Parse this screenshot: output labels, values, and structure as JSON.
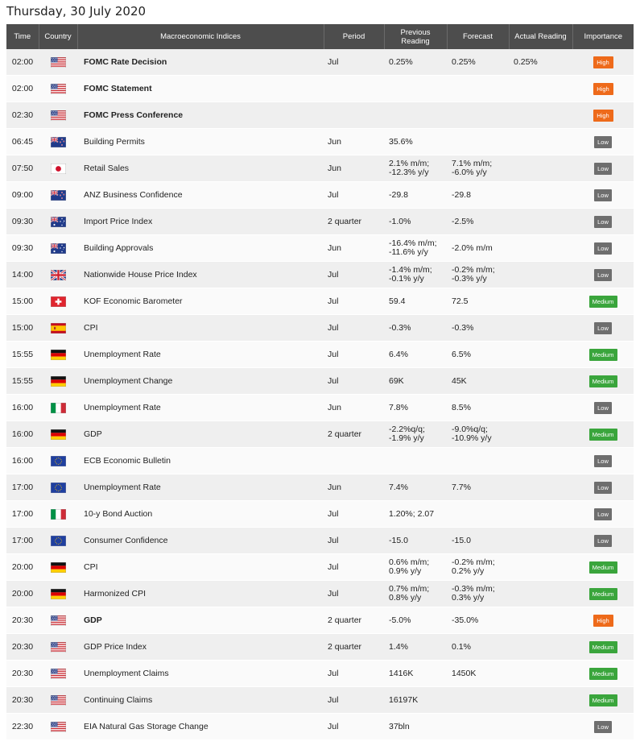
{
  "page": {
    "title": "Thursday, 30 July 2020"
  },
  "columns": [
    "Time",
    "Country",
    "Macroeconomic Indices",
    "Period",
    "Previous Reading",
    "Forecast",
    "Actual Reading",
    "Importance"
  ],
  "colors": {
    "header_bg": "#4d4d4d",
    "high": "#ee6a1a",
    "medium": "#3aa53c",
    "low": "#6e6e6e"
  },
  "rows": [
    {
      "time": "02:00",
      "country": "us-flag-icon",
      "event": "FOMC Rate Decision",
      "bold": true,
      "period": "Jul",
      "prev": "0.25%",
      "fcst": "0.25%",
      "actual": "0.25%",
      "importance": "High"
    },
    {
      "time": "02:00",
      "country": "us-flag-icon",
      "event": "FOMC Statement",
      "bold": true,
      "period": "",
      "prev": "",
      "fcst": "",
      "actual": "",
      "importance": "High"
    },
    {
      "time": "02:30",
      "country": "us-flag-icon",
      "event": "FOMC Press Conference",
      "bold": true,
      "period": "",
      "prev": "",
      "fcst": "",
      "actual": "",
      "importance": "High"
    },
    {
      "time": "06:45",
      "country": "nz-flag-icon",
      "event": "Building Permits",
      "bold": false,
      "period": "Jun",
      "prev": "35.6%",
      "fcst": "",
      "actual": "",
      "importance": "Low"
    },
    {
      "time": "07:50",
      "country": "jp-flag-icon",
      "event": "Retail Sales",
      "bold": false,
      "period": "Jun",
      "prev": "2.1% m/m;\n-12.3% y/y",
      "fcst": "7.1% m/m;\n-6.0% y/y",
      "actual": "",
      "importance": "Low"
    },
    {
      "time": "09:00",
      "country": "nz-flag-icon",
      "event": "ANZ Business Confidence",
      "bold": false,
      "period": "Jul",
      "prev": "-29.8",
      "fcst": "-29.8",
      "actual": "",
      "importance": "Low"
    },
    {
      "time": "09:30",
      "country": "au-flag-icon",
      "event": "Import Price Index",
      "bold": false,
      "period": "2 quarter",
      "prev": "-1.0%",
      "fcst": "-2.5%",
      "actual": "",
      "importance": "Low"
    },
    {
      "time": "09:30",
      "country": "au-flag-icon",
      "event": "Building Approvals",
      "bold": false,
      "period": "Jun",
      "prev": "-16.4% m/m;\n-11.6% y/y",
      "fcst": "-2.0% m/m",
      "actual": "",
      "importance": "Low"
    },
    {
      "time": "14:00",
      "country": "uk-flag-icon",
      "event": "Nationwide House Price Index",
      "bold": false,
      "period": "Jul",
      "prev": "-1.4% m/m;\n-0.1% y/y",
      "fcst": "-0.2% m/m;\n-0.3% y/y",
      "actual": "",
      "importance": "Low"
    },
    {
      "time": "15:00",
      "country": "ch-flag-icon",
      "event": "KOF Economic Barometer",
      "bold": false,
      "period": "Jul",
      "prev": "59.4",
      "fcst": "72.5",
      "actual": "",
      "importance": "Medium"
    },
    {
      "time": "15:00",
      "country": "es-flag-icon",
      "event": "CPI",
      "bold": false,
      "period": "Jul",
      "prev": "-0.3%",
      "fcst": "-0.3%",
      "actual": "",
      "importance": "Low"
    },
    {
      "time": "15:55",
      "country": "de-flag-icon",
      "event": "Unemployment Rate",
      "bold": false,
      "period": "Jul",
      "prev": "6.4%",
      "fcst": "6.5%",
      "actual": "",
      "importance": "Medium"
    },
    {
      "time": "15:55",
      "country": "de-flag-icon",
      "event": "Unemployment Change",
      "bold": false,
      "period": "Jul",
      "prev": "69K",
      "fcst": "45K",
      "actual": "",
      "importance": "Medium"
    },
    {
      "time": "16:00",
      "country": "it-flag-icon",
      "event": "Unemployment Rate",
      "bold": false,
      "period": "Jun",
      "prev": "7.8%",
      "fcst": "8.5%",
      "actual": "",
      "importance": "Low"
    },
    {
      "time": "16:00",
      "country": "de-flag-icon",
      "event": "GDP",
      "bold": false,
      "period": "2 quarter",
      "prev": "-2.2%q/q;\n-1.9% y/y",
      "fcst": "-9.0%q/q;\n-10.9% y/y",
      "actual": "",
      "importance": "Medium"
    },
    {
      "time": "16:00",
      "country": "eu-flag-icon",
      "event": "ECB Economic Bulletin",
      "bold": false,
      "period": "",
      "prev": "",
      "fcst": "",
      "actual": "",
      "importance": "Low"
    },
    {
      "time": "17:00",
      "country": "eu-flag-icon",
      "event": "Unemployment Rate",
      "bold": false,
      "period": "Jun",
      "prev": "7.4%",
      "fcst": "7.7%",
      "actual": "",
      "importance": "Low"
    },
    {
      "time": "17:00",
      "country": "it-flag-icon",
      "event": "10-y Bond Auction",
      "bold": false,
      "period": "Jul",
      "prev": "1.20%; 2.07",
      "fcst": "",
      "actual": "",
      "importance": "Low"
    },
    {
      "time": "17:00",
      "country": "eu-flag-icon",
      "event": "Consumer Confidence",
      "bold": false,
      "period": "Jul",
      "prev": "-15.0",
      "fcst": "-15.0",
      "actual": "",
      "importance": "Low"
    },
    {
      "time": "20:00",
      "country": "de-flag-icon",
      "event": "CPI",
      "bold": false,
      "period": "Jul",
      "prev": "0.6% m/m;\n0.9% y/y",
      "fcst": "-0.2% m/m;\n0.2% y/y",
      "actual": "",
      "importance": "Medium"
    },
    {
      "time": "20:00",
      "country": "de-flag-icon",
      "event": "Harmonized CPI",
      "bold": false,
      "period": "Jul",
      "prev": "0.7% m/m;\n0.8% y/y",
      "fcst": "-0.3% m/m;\n0.3% y/y",
      "actual": "",
      "importance": "Medium"
    },
    {
      "time": "20:30",
      "country": "us-flag-icon",
      "event": "GDP",
      "bold": true,
      "period": "2 quarter",
      "prev": "-5.0%",
      "fcst": "-35.0%",
      "actual": "",
      "importance": "High"
    },
    {
      "time": "20:30",
      "country": "us-flag-icon",
      "event": "GDP Price Index",
      "bold": false,
      "period": "2 quarter",
      "prev": "1.4%",
      "fcst": "0.1%",
      "actual": "",
      "importance": "Medium"
    },
    {
      "time": "20:30",
      "country": "us-flag-icon",
      "event": "Unemployment Claims",
      "bold": false,
      "period": "Jul",
      "prev": "1416K",
      "fcst": "1450K",
      "actual": "",
      "importance": "Medium"
    },
    {
      "time": "20:30",
      "country": "us-flag-icon",
      "event": "Continuing Claims",
      "bold": false,
      "period": "Jul",
      "prev": "16197K",
      "fcst": "",
      "actual": "",
      "importance": "Medium"
    },
    {
      "time": "22:30",
      "country": "us-flag-icon",
      "event": "EIA Natural Gas Storage Change",
      "bold": false,
      "period": "Jul",
      "prev": "37bln",
      "fcst": "",
      "actual": "",
      "importance": "Low"
    }
  ]
}
